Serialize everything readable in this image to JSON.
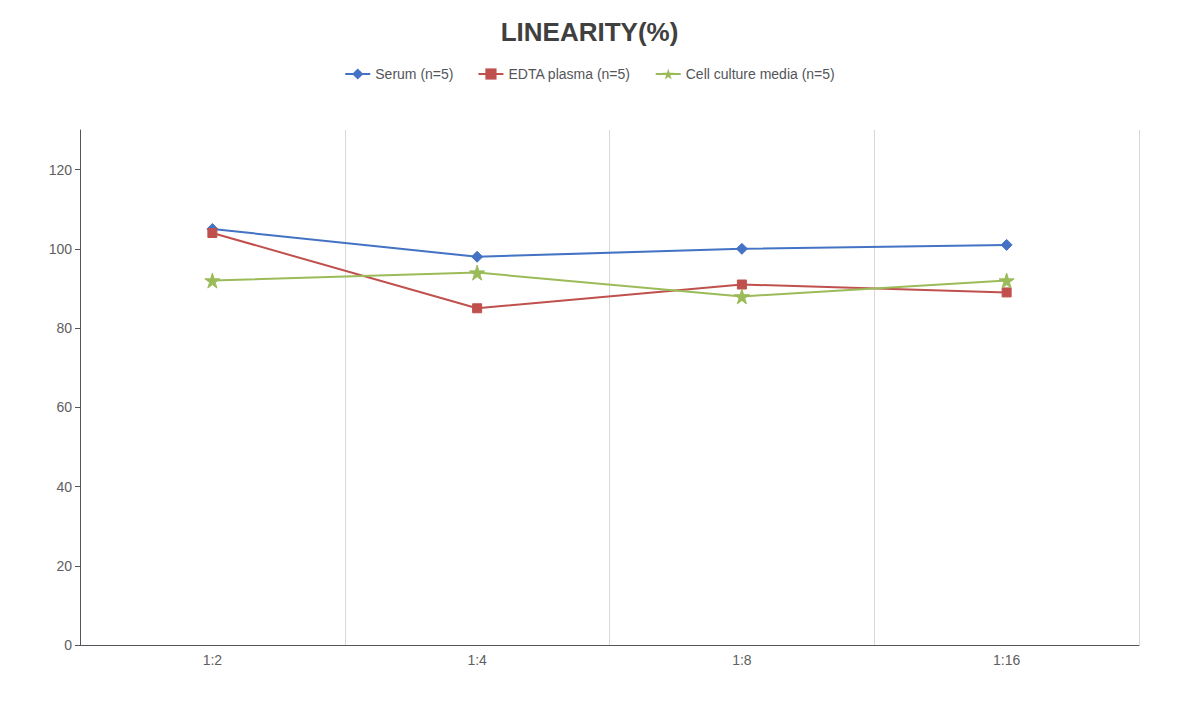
{
  "chart_data": {
    "type": "line",
    "title": "LINEARITY(%)",
    "categories": [
      "1:2",
      "1:4",
      "1:8",
      "1:16"
    ],
    "series": [
      {
        "name": "Serum (n=5)",
        "color": "#4472C4",
        "marker": "diamond",
        "values": [
          105,
          98,
          100,
          101
        ]
      },
      {
        "name": "EDTA plasma (n=5)",
        "color": "#C0504D",
        "marker": "square",
        "values": [
          104,
          85,
          91,
          89
        ]
      },
      {
        "name": "Cell culture media (n=5)",
        "color": "#9BBB59",
        "marker": "star",
        "values": [
          92,
          94,
          88,
          92
        ]
      }
    ],
    "ylim": [
      0,
      130
    ],
    "yticks": [
      0,
      20,
      40,
      60,
      80,
      100,
      120
    ],
    "grid": true,
    "legend": "top"
  }
}
